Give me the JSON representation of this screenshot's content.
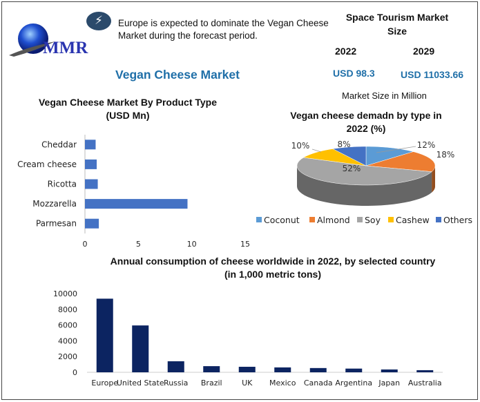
{
  "logo": {
    "text": "MMR"
  },
  "highlight": {
    "icon": "lightning-icon",
    "text": "Europe is expected to dominate the Vegan Cheese Market during the forecast period."
  },
  "title": "Vegan Cheese Market",
  "market_size": {
    "heading": "Space Tourism Market Size",
    "years": [
      "2022",
      "2029"
    ],
    "values": [
      "USD 98.3",
      "USD 11033.66"
    ],
    "unit_note": "Market Size in Million"
  },
  "colors": {
    "accent": "#1f6fa8",
    "bar_h": "#4472c4",
    "bar_v": "#0c2461"
  },
  "chart_data": [
    {
      "type": "bar",
      "orientation": "horizontal",
      "title": "Vegan Cheese Market By Product Type (USD Mn)",
      "title_lines": [
        "Vegan Cheese Market By Product Type",
        "(USD Mn)"
      ],
      "categories": [
        "Cheddar",
        "Cream cheese",
        "Ricotta",
        "Mozzarella",
        "Parmesan"
      ],
      "values": [
        1.0,
        1.1,
        1.2,
        9.6,
        1.3
      ],
      "xlim": [
        0,
        15
      ],
      "xticks": [
        "0",
        "5",
        "10",
        "15"
      ],
      "grid": false
    },
    {
      "type": "pie",
      "title": "Vegan cheese demadn by type in 2022 (%)",
      "title_lines": [
        "Vegan cheese demadn by type in",
        "2022 (%)"
      ],
      "categories": [
        "Coconut",
        "Almond",
        "Soy",
        "Cashew",
        "Others"
      ],
      "values": [
        12,
        18,
        52,
        10,
        8
      ],
      "labels": [
        "12%",
        "18%",
        "52%",
        "10%",
        "8%"
      ],
      "colors": [
        "#5b9bd5",
        "#ed7d31",
        "#a5a5a5",
        "#ffc000",
        "#4472c4"
      ],
      "legend": "bottom"
    },
    {
      "type": "bar",
      "title": "Annual consumption of cheese worldwide in 2022, by selected country (in 1,000 metric tons)",
      "title_lines": [
        "Annual consumption of cheese worldwide in 2022, by selected country",
        "(in 1,000 metric tons)"
      ],
      "categories": [
        "Europe",
        "United State",
        "Russia",
        "Brazil",
        "UK",
        "Mexico",
        "Canada",
        "Argentina",
        "Japan",
        "Australia"
      ],
      "values": [
        9350,
        5950,
        1400,
        780,
        700,
        620,
        540,
        470,
        360,
        270
      ],
      "ylim": [
        0,
        10000
      ],
      "yticks": [
        "0",
        "2000",
        "4000",
        "6000",
        "8000",
        "10000"
      ],
      "grid": false
    }
  ]
}
